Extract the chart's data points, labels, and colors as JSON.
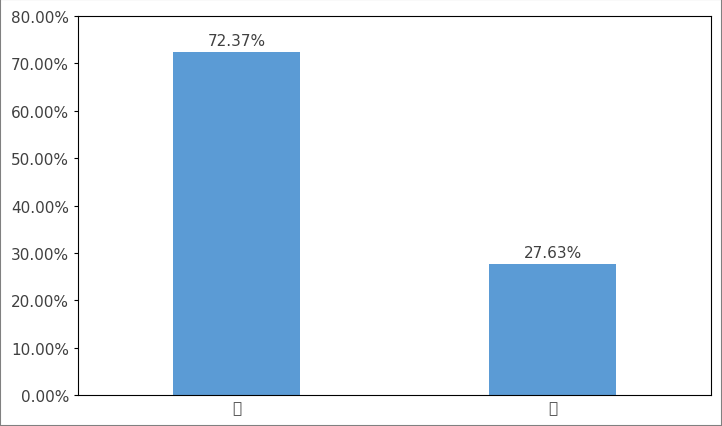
{
  "categories": [
    "是",
    "否"
  ],
  "values": [
    0.7237,
    0.2763
  ],
  "labels": [
    "72.37%",
    "27.63%"
  ],
  "bar_color": "#5B9BD5",
  "background_color": "#ffffff",
  "ylim": [
    0,
    0.8
  ],
  "yticks": [
    0.0,
    0.1,
    0.2,
    0.3,
    0.4,
    0.5,
    0.6,
    0.7,
    0.8
  ],
  "ytick_labels": [
    "0.00%",
    "10.00%",
    "20.00%",
    "30.00%",
    "40.00%",
    "50.00%",
    "60.00%",
    "70.00%",
    "80.00%"
  ],
  "x_positions": [
    1,
    3
  ],
  "xlim": [
    0,
    4
  ],
  "bar_width": 0.8,
  "label_fontsize": 11,
  "tick_fontsize": 11,
  "label_color": "#404040",
  "tick_color": "#404040",
  "spine_color": "#000000",
  "figure_border_color": "#808080",
  "grid": false
}
